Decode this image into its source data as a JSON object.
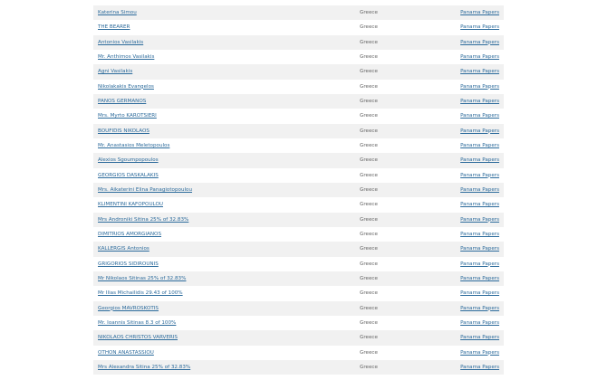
{
  "rows": [
    {
      "name": "Katerina Simou",
      "country": "Greece",
      "source": "Panama Papers"
    },
    {
      "name": "THE BEARER",
      "country": "Greece",
      "source": "Panama Papers"
    },
    {
      "name": "Antonios Vasilakis",
      "country": "Greece",
      "source": "Panama Papers"
    },
    {
      "name": "Mr. Anthimos Vasilakis",
      "country": "Greece",
      "source": "Panama Papers"
    },
    {
      "name": "Agni Vasilakis",
      "country": "Greece",
      "source": "Panama Papers"
    },
    {
      "name": "Nikolakakis Evangelos",
      "country": "Greece",
      "source": "Panama Papers"
    },
    {
      "name": "PANOS GERMANOS",
      "country": "Greece",
      "source": "Panama Papers"
    },
    {
      "name": "Mrs. Myrto KAROTSIERI",
      "country": "Greece",
      "source": "Panama Papers"
    },
    {
      "name": "BOUFIDIS NIKOLAOS",
      "country": "Greece",
      "source": "Panama Papers"
    },
    {
      "name": "Mr. Anastasios Meletopoulos",
      "country": "Greece",
      "source": "Panama Papers"
    },
    {
      "name": "Alexios Sgoumpopoulos",
      "country": "Greece",
      "source": "Panama Papers"
    },
    {
      "name": "GEORGIOS DASKALAKIS",
      "country": "Greece",
      "source": "Panama Papers"
    },
    {
      "name": "Mrs. Aikaterini Elina Panagiotopoulou",
      "country": "Greece",
      "source": "Panama Papers"
    },
    {
      "name": "KLIMENTINI KAFOPOULOU",
      "country": "Greece",
      "source": "Panama Papers"
    },
    {
      "name": "Mrs Androniki Sitina 25% of 32.83%",
      "country": "Greece",
      "source": "Panama Papers"
    },
    {
      "name": "DIMITRIOS AMORGIANOS",
      "country": "Greece",
      "source": "Panama Papers"
    },
    {
      "name": "KALLERGIS Antonios",
      "country": "Greece",
      "source": "Panama Papers"
    },
    {
      "name": "GRIGORIOS SIDIROUNIS",
      "country": "Greece",
      "source": "Panama Papers"
    },
    {
      "name": "Mr Nikolaos Sitinas 25% of 32.83%",
      "country": "Greece",
      "source": "Panama Papers"
    },
    {
      "name": "Mr Ilias Michailidis 29.43 of 100%",
      "country": "Greece",
      "source": "Panama Papers"
    },
    {
      "name": "Georgios MAVROSKOTIS",
      "country": "Greece",
      "source": "Panama Papers"
    },
    {
      "name": "Mr. Ioannis Sitinas 8.3 of 100%",
      "country": "Greece",
      "source": "Panama Papers"
    },
    {
      "name": "NIKOLAOS CHRISTOS VARVERIS",
      "country": "Greece",
      "source": "Panama Papers"
    },
    {
      "name": "OTHON ANASTASSIOU",
      "country": "Greece",
      "source": "Panama Papers"
    },
    {
      "name": "Mrs Alexandra Sitina 25% of 32.83%",
      "country": "Greece",
      "source": "Panama Papers"
    }
  ]
}
